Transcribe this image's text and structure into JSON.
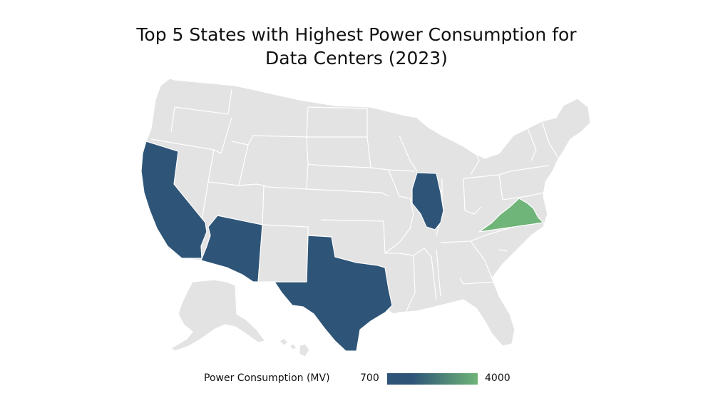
{
  "title_line1": "Top 5 States with Highest Power Consumption for",
  "title_line2": "Data Centers (2023)",
  "legend": {
    "title": "Power Consumption (MV)",
    "min_label": "700",
    "max_label": "4000",
    "color_low": "#2e5578",
    "color_high": "#6fb478"
  },
  "colors": {
    "base_state": "#e3e3e3",
    "state_border": "#ffffff",
    "highlight_dark": "#2e5578",
    "highlight_green": "#6fb478"
  },
  "highlighted_states": [
    {
      "name": "California",
      "color": "#2e5578"
    },
    {
      "name": "Arizona",
      "color": "#2e5578"
    },
    {
      "name": "Texas",
      "color": "#2e5578"
    },
    {
      "name": "Illinois",
      "color": "#2e5578"
    },
    {
      "name": "Virginia",
      "color": "#6fb478"
    }
  ]
}
